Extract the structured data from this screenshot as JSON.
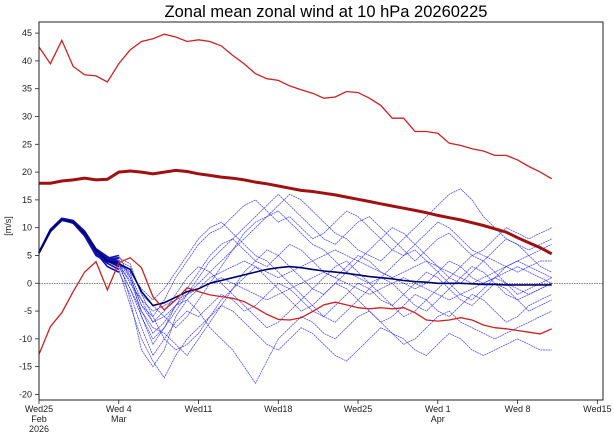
{
  "chart_data": {
    "type": "line",
    "title": "Zonal mean zonal wind at 10 hPa 20260225",
    "xlabel": "",
    "ylabel": "[m/s]",
    "ylim": [
      -21,
      47
    ],
    "xlim": [
      "2026-02-25",
      "2026-04-15T12:00"
    ],
    "yticks": [
      -20,
      -15,
      -10,
      -5,
      0,
      5,
      10,
      15,
      20,
      25,
      30,
      35,
      40,
      45
    ],
    "xticks": [
      {
        "date": "2026-02-25",
        "lines": [
          "Wed25",
          "Feb",
          "2026"
        ]
      },
      {
        "date": "2026-03-04",
        "lines": [
          "Wed 4",
          "Mar"
        ]
      },
      {
        "date": "2026-03-11",
        "lines": [
          "Wed11"
        ]
      },
      {
        "date": "2026-03-18",
        "lines": [
          "Wed18"
        ]
      },
      {
        "date": "2026-03-25",
        "lines": [
          "Wed25"
        ]
      },
      {
        "date": "2026-04-01",
        "lines": [
          "Wed 1",
          "Apr"
        ]
      },
      {
        "date": "2026-04-08",
        "lines": [
          "Wed 8"
        ]
      },
      {
        "date": "2026-04-15",
        "lines": [
          "Wed15"
        ]
      }
    ],
    "zero_line": true,
    "grid": false,
    "legend": "none",
    "colors": {
      "reference": "#cc2222",
      "reference_mean": "#a01010",
      "members": "#1a1aee",
      "ensemble_mean": "#00006a"
    },
    "x": [
      "2026-02-25",
      "2026-02-26",
      "2026-02-27",
      "2026-02-28",
      "2026-03-01",
      "2026-03-02",
      "2026-03-03",
      "2026-03-04",
      "2026-03-05",
      "2026-03-06",
      "2026-03-07",
      "2026-03-08",
      "2026-03-09",
      "2026-03-10",
      "2026-03-11",
      "2026-03-12",
      "2026-03-13",
      "2026-03-14",
      "2026-03-15",
      "2026-03-16",
      "2026-03-17",
      "2026-03-18",
      "2026-03-19",
      "2026-03-20",
      "2026-03-21",
      "2026-03-22",
      "2026-03-23",
      "2026-03-24",
      "2026-03-25",
      "2026-03-26",
      "2026-03-27",
      "2026-03-28",
      "2026-03-29",
      "2026-03-30",
      "2026-03-31",
      "2026-04-01",
      "2026-04-02",
      "2026-04-03",
      "2026-04-04",
      "2026-04-05",
      "2026-04-06",
      "2026-04-07",
      "2026-04-08",
      "2026-04-09",
      "2026-04-10",
      "2026-04-11"
    ],
    "reference_lines": [
      {
        "role": "upper",
        "values": [
          42.5,
          39.5,
          43.7,
          39,
          37.5,
          37.3,
          36.2,
          39.5,
          42,
          43.5,
          44,
          44.8,
          44.3,
          43.5,
          43.8,
          43.5,
          42.7,
          41,
          39.5,
          37.7,
          36.8,
          36.5,
          35.5,
          34.8,
          34.2,
          33.3,
          33.5,
          34.5,
          34.3,
          33.3,
          32,
          29.7,
          29.7,
          27.3,
          27.3,
          27,
          25.2,
          24.8,
          24.2,
          23.8,
          23,
          23,
          22.2,
          21,
          20,
          18.8
        ]
      },
      {
        "role": "mean",
        "values": [
          18,
          18,
          18.4,
          18.6,
          18.9,
          18.6,
          18.7,
          20,
          20.2,
          20,
          19.7,
          20,
          20.3,
          20.1,
          19.7,
          19.4,
          19.1,
          18.9,
          18.6,
          18.2,
          17.9,
          17.5,
          17.1,
          16.7,
          16.5,
          16.2,
          15.9,
          15.5,
          15.1,
          14.7,
          14.3,
          13.9,
          13.5,
          13.1,
          12.7,
          12.2,
          11.8,
          11.4,
          10.9,
          10.4,
          9.8,
          9.2,
          8.2,
          7.3,
          6.4,
          5.3
        ]
      },
      {
        "role": "lower",
        "values": [
          -12.8,
          -7.8,
          -5.3,
          -1.5,
          2,
          3.9,
          -1.2,
          3.7,
          4.6,
          2.8,
          -2.4,
          -4.8,
          -3,
          -0.8,
          -1.5,
          -2.1,
          -2.4,
          -2.7,
          -3.3,
          -4.4,
          -5.6,
          -6.5,
          -6.6,
          -6.2,
          -5.1,
          -3.9,
          -3.4,
          -3.9,
          -4.4,
          -4.6,
          -4.4,
          -4.6,
          -4.4,
          -5.3,
          -6.6,
          -6.8,
          -6.6,
          -6.2,
          -6.6,
          -7.5,
          -8,
          -8.2,
          -8.5,
          -8.8,
          -9.1,
          -8.2
        ]
      }
    ],
    "ensemble_mean": [
      5.5,
      9.5,
      11.5,
      11,
      9,
      6,
      4,
      3.5,
      2.5,
      -1.5,
      -4,
      -3.5,
      -2.5,
      -1.5,
      -1,
      0,
      0.5,
      1,
      1.5,
      2,
      2.5,
      2.8,
      3,
      2.8,
      2.5,
      2.2,
      2,
      1.8,
      1.5,
      1.2,
      1,
      0.8,
      0.5,
      0.3,
      0.2,
      0,
      0,
      0,
      -0.1,
      -0.2,
      -0.2,
      -0.3,
      -0.3,
      -0.3,
      -0.3,
      -0.3
    ],
    "members": [
      [
        5.5,
        9.4,
        11.4,
        11,
        9,
        5.8,
        4,
        3.5,
        2,
        -6,
        -10,
        -8,
        -4,
        -2,
        0,
        2,
        4,
        6,
        8,
        10,
        12,
        13,
        11,
        9,
        7,
        6,
        4,
        2,
        1,
        0,
        1,
        3,
        5,
        6,
        4,
        2,
        0,
        -2,
        -3,
        -1,
        1,
        3,
        4,
        5,
        6,
        7
      ],
      [
        5.6,
        9.6,
        11.6,
        10.8,
        8.5,
        5,
        3.8,
        4.5,
        -3,
        -12,
        -15,
        -12,
        -6,
        -3,
        -5,
        -8,
        -10,
        -12,
        -15,
        -18,
        -14,
        -10,
        -8,
        -6,
        -7,
        -9,
        -10,
        -8,
        -6,
        -5,
        -7,
        -9,
        -11,
        -10,
        -8,
        -6,
        -5,
        -7,
        -8,
        -9,
        -10,
        -9,
        -8,
        -7,
        -6,
        -5
      ],
      [
        5.4,
        9.5,
        11.5,
        11.2,
        9.2,
        6,
        4.5,
        5,
        1,
        -4,
        -6,
        -3,
        1,
        4,
        7,
        9,
        10,
        12,
        14,
        15,
        13,
        11,
        12,
        10,
        8,
        9,
        11,
        13,
        12,
        10,
        8,
        6,
        5,
        7,
        9,
        11,
        10,
        8,
        6,
        5,
        4,
        3,
        2,
        3,
        4,
        4
      ],
      [
        5.5,
        9.3,
        11.3,
        10.9,
        8.8,
        5.5,
        3,
        2,
        -2,
        -8,
        -13,
        -10,
        -7,
        -5,
        -6,
        -4,
        -2,
        -3,
        -5,
        -4,
        -2,
        0,
        -1,
        -3,
        -5,
        -6,
        -4,
        -2,
        0,
        -1,
        -3,
        -4,
        -2,
        0,
        2,
        1,
        -1,
        -3,
        -4,
        -2,
        0,
        -1,
        -3,
        -5,
        -4,
        -3
      ],
      [
        5.5,
        9.5,
        11.5,
        11,
        9,
        5.5,
        4,
        3,
        -1,
        -5,
        -8,
        -9,
        -11,
        -13,
        -10,
        -7,
        -4,
        -1,
        2,
        4,
        6,
        5,
        3,
        1,
        -1,
        -2,
        0,
        2,
        4,
        6,
        8,
        10,
        9,
        7,
        5,
        3,
        1,
        0,
        2,
        4,
        6,
        8,
        7,
        5,
        3,
        2
      ],
      [
        5.6,
        9.7,
        11.7,
        11.3,
        9.4,
        6.2,
        4.8,
        3.5,
        0,
        -3,
        -7,
        -5,
        -2,
        1,
        3,
        2,
        0,
        -2,
        -4,
        -6,
        -8,
        -7,
        -5,
        -3,
        -1,
        1,
        3,
        4,
        2,
        0,
        -2,
        -4,
        -6,
        -5,
        -3,
        -1,
        1,
        3,
        5,
        4,
        2,
        0,
        -2,
        -1,
        0,
        1
      ],
      [
        5.5,
        9.4,
        11.5,
        11,
        9,
        5.7,
        4.2,
        4,
        3,
        -2,
        -4,
        -6,
        -8,
        -6,
        -3,
        0,
        3,
        6,
        9,
        11,
        12,
        14,
        16,
        15,
        13,
        11,
        9,
        8,
        6,
        5,
        4,
        6,
        8,
        10,
        12,
        14,
        16,
        17,
        15,
        12,
        10,
        8,
        7,
        6,
        7,
        8
      ],
      [
        5.4,
        9.3,
        11.4,
        10.8,
        8.7,
        5.3,
        3.6,
        2.5,
        -4,
        -10,
        -14,
        -17,
        -13,
        -10,
        -8,
        -6,
        -4,
        -5,
        -7,
        -9,
        -11,
        -12,
        -10,
        -8,
        -9,
        -11,
        -13,
        -14,
        -12,
        -10,
        -8,
        -9,
        -10,
        -12,
        -13,
        -11,
        -9,
        -10,
        -12,
        -13,
        -12,
        -11,
        -10,
        -11,
        -12,
        -12
      ],
      [
        5.5,
        9.5,
        11.6,
        11.1,
        9.1,
        5.9,
        4.1,
        3.2,
        0.5,
        -5,
        -9,
        -7,
        -4,
        -1,
        2,
        5,
        7,
        8,
        6,
        4,
        3,
        5,
        7,
        6,
        4,
        2,
        1,
        3,
        5,
        4,
        2,
        1,
        0,
        -1,
        0,
        2,
        4,
        3,
        1,
        0,
        1,
        2,
        3,
        2,
        1,
        0
      ],
      [
        5.5,
        9.6,
        11.5,
        11,
        9,
        5.6,
        4,
        3.8,
        1.5,
        -3,
        -5,
        -4,
        -3,
        -2,
        -1,
        0,
        1,
        0,
        -1,
        -2,
        -3,
        -2,
        -1,
        0,
        1,
        2,
        1,
        0,
        -1,
        -2,
        -1,
        0,
        1,
        0,
        -1,
        -2,
        -3,
        -2,
        -1,
        0,
        1,
        0,
        -1,
        -2,
        -1,
        0
      ],
      [
        5.5,
        9.4,
        11.4,
        11,
        8.9,
        5.5,
        3.9,
        3.4,
        2,
        -1,
        -3,
        -1,
        2,
        5,
        8,
        10,
        11,
        9,
        7,
        5,
        4,
        2,
        0,
        -2,
        -4,
        -6,
        -7,
        -5,
        -3,
        -1,
        1,
        0,
        -2,
        -4,
        -5,
        -3,
        -1,
        1,
        3,
        2,
        0,
        -2,
        -3,
        -2,
        -1,
        0
      ],
      [
        5.6,
        9.5,
        11.5,
        11.1,
        9.1,
        5.8,
        4.3,
        4.6,
        3.5,
        -2,
        -6,
        -10,
        -12,
        -11,
        -9,
        -6,
        -3,
        -1,
        1,
        3,
        1,
        -1,
        -3,
        -5,
        -4,
        -2,
        0,
        -1,
        -3,
        -5,
        -7,
        -6,
        -4,
        -2,
        -3,
        -5,
        -6,
        -4,
        -2,
        -3,
        -5,
        -7,
        -6,
        -4,
        -3,
        -2
      ],
      [
        5.5,
        9.5,
        11.5,
        11,
        9,
        5.5,
        4,
        3,
        -1,
        -6,
        -11,
        -8,
        -5,
        -2,
        1,
        4,
        6,
        8,
        10,
        12,
        14,
        16,
        14,
        12,
        10,
        8,
        7,
        9,
        11,
        12,
        10,
        8,
        6,
        4,
        6,
        8,
        9,
        7,
        5,
        6,
        8,
        10,
        9,
        8,
        9,
        10
      ],
      [
        5.5,
        9.5,
        11.5,
        11,
        9,
        5.5,
        4,
        3.6,
        1,
        -4,
        -7,
        -6,
        -4,
        -3,
        -1,
        1,
        2,
        3,
        4,
        3,
        2,
        1,
        2,
        3,
        4,
        5,
        6,
        5,
        4,
        3,
        2,
        1,
        2,
        3,
        4,
        3,
        2,
        1,
        0,
        1,
        2,
        3,
        4,
        3,
        2,
        1
      ]
    ]
  }
}
